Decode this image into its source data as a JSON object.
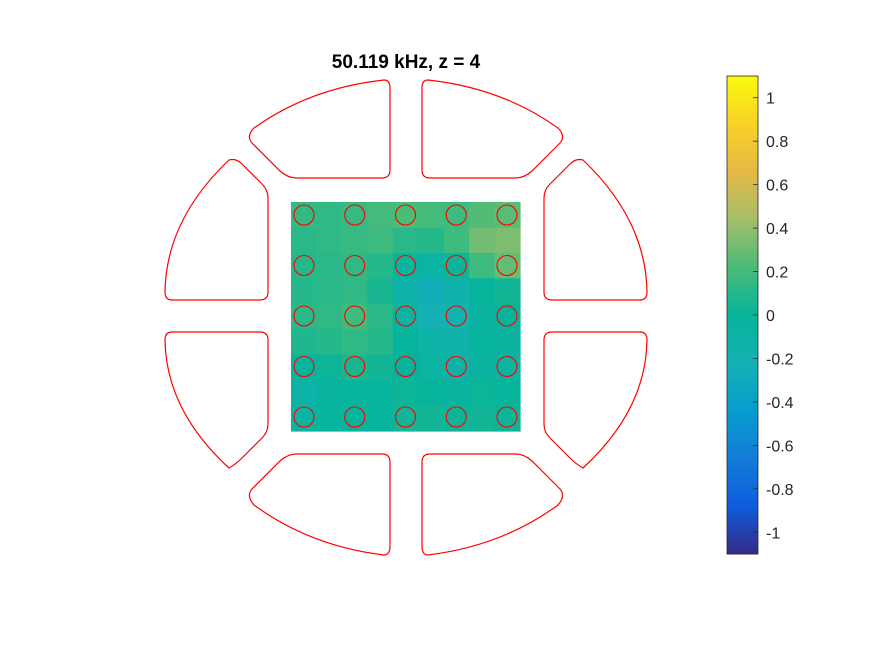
{
  "chart_data": {
    "type": "heatmap",
    "title": "50.119 kHz, z = 4",
    "colorbar": {
      "range": [
        -1.1,
        1.1
      ],
      "ticks": [
        -1,
        -0.8,
        -0.6,
        -0.4,
        -0.2,
        0,
        0.2,
        0.4,
        0.6,
        0.8,
        1
      ],
      "tick_labels": [
        "-1",
        "-0.8",
        "-0.6",
        "-0.4",
        "-0.2",
        "0",
        "0.2",
        "0.4",
        "0.6",
        "0.8",
        "1"
      ],
      "colormap": "parula"
    },
    "grid_rows": 9,
    "grid_cols": 9,
    "values": [
      [
        0.15,
        0.14,
        0.16,
        0.2,
        0.22,
        0.2,
        0.18,
        0.24,
        0.26
      ],
      [
        0.12,
        0.14,
        0.16,
        0.18,
        0.12,
        0.1,
        0.18,
        0.32,
        0.34
      ],
      [
        0.1,
        0.12,
        0.14,
        0.1,
        -0.02,
        -0.08,
        0.02,
        0.18,
        0.28
      ],
      [
        0.1,
        0.12,
        0.14,
        0.06,
        -0.12,
        -0.25,
        -0.15,
        0.0,
        0.04
      ],
      [
        0.12,
        0.14,
        0.18,
        0.12,
        -0.06,
        -0.22,
        -0.18,
        -0.04,
        0.0
      ],
      [
        0.08,
        0.1,
        0.14,
        0.1,
        0.0,
        -0.1,
        -0.12,
        -0.02,
        -0.04
      ],
      [
        -0.02,
        0.02,
        0.06,
        0.04,
        0.0,
        -0.06,
        -0.1,
        -0.04,
        -0.06
      ],
      [
        -0.1,
        -0.04,
        0.0,
        0.0,
        0.02,
        0.0,
        -0.04,
        0.02,
        0.0
      ],
      [
        -0.06,
        -0.02,
        0.0,
        0.0,
        0.04,
        0.04,
        0.02,
        0.04,
        0.02
      ]
    ],
    "markers": {
      "rows": 5,
      "cols": 5,
      "color": "#ff0000"
    },
    "outline_color": "#ff0000",
    "grid": false
  }
}
